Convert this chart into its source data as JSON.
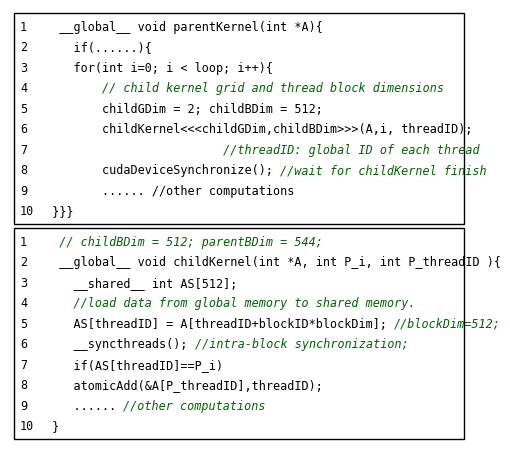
{
  "black": "#000000",
  "green": "#006400",
  "white": "#ffffff",
  "font_size": 8.5,
  "box1_lines": [
    [
      [
        "1",
        "black",
        "normal"
      ],
      [
        "  __global__ void parentKernel(int *A){",
        "black",
        "normal"
      ]
    ],
    [
      [
        "2",
        "black",
        "normal"
      ],
      [
        "    if(......){",
        "black",
        "normal"
      ]
    ],
    [
      [
        "3",
        "black",
        "normal"
      ],
      [
        "    for(int i=0; i < loop; i++){",
        "black",
        "normal"
      ]
    ],
    [
      [
        "4",
        "black",
        "normal"
      ],
      [
        "        // child kernel grid and thread block dimensions",
        "green",
        "italic"
      ]
    ],
    [
      [
        "5",
        "black",
        "normal"
      ],
      [
        "        childGDim = 2; childBDim = 512;",
        "black",
        "normal"
      ]
    ],
    [
      [
        "6",
        "black",
        "normal"
      ],
      [
        "        childKernel<<<childGDim,childBDim>>>(A,i, threadID);",
        "black",
        "normal"
      ]
    ],
    [
      [
        "7",
        "black",
        "normal"
      ],
      [
        "                         //threadID: global ID of each thread",
        "green",
        "italic"
      ]
    ],
    [
      [
        "8",
        "black",
        "normal"
      ],
      [
        "        cudaDeviceSynchronize(); ",
        "black",
        "normal"
      ],
      [
        "//wait for childKernel finish",
        "green",
        "italic"
      ]
    ],
    [
      [
        "9",
        "black",
        "normal"
      ],
      [
        "        ...... //other computations",
        "black",
        "normal"
      ]
    ],
    [
      [
        "10",
        "black",
        "normal"
      ],
      [
        " }}}",
        "black",
        "normal"
      ]
    ]
  ],
  "box2_lines": [
    [
      [
        "1",
        "black",
        "normal"
      ],
      [
        "  // childBDim = 512; parentBDim = 544;",
        "green",
        "italic"
      ]
    ],
    [
      [
        "2",
        "black",
        "normal"
      ],
      [
        "  __global__ void childKernel(int *A, int P_i, int P_threadID ){",
        "black",
        "normal"
      ]
    ],
    [
      [
        "3",
        "black",
        "normal"
      ],
      [
        "    __shared__ int AS[512];",
        "black",
        "normal"
      ]
    ],
    [
      [
        "4",
        "black",
        "normal"
      ],
      [
        "    //load data from global memory to shared memory.",
        "green",
        "italic"
      ]
    ],
    [
      [
        "5",
        "black",
        "normal"
      ],
      [
        "    AS[threadID] = A[threadID+blockID*blockDim]; ",
        "black",
        "normal"
      ],
      [
        "//blockDim=512;",
        "green",
        "italic"
      ]
    ],
    [
      [
        "6",
        "black",
        "normal"
      ],
      [
        "    __syncthreads(); ",
        "black",
        "normal"
      ],
      [
        "//intra-block synchronization;",
        "green",
        "italic"
      ]
    ],
    [
      [
        "7",
        "black",
        "normal"
      ],
      [
        "    if(AS[threadID]==P_i)",
        "black",
        "normal"
      ]
    ],
    [
      [
        "8",
        "black",
        "normal"
      ],
      [
        "    atomicAdd(&A[P_threadID],threadID);",
        "black",
        "normal"
      ]
    ],
    [
      [
        "9",
        "black",
        "normal"
      ],
      [
        "    ...... ",
        "black",
        "normal"
      ],
      [
        "//other computations",
        "green",
        "italic"
      ]
    ],
    [
      [
        "10",
        "black",
        "normal"
      ],
      [
        " }",
        "black",
        "normal"
      ]
    ]
  ]
}
